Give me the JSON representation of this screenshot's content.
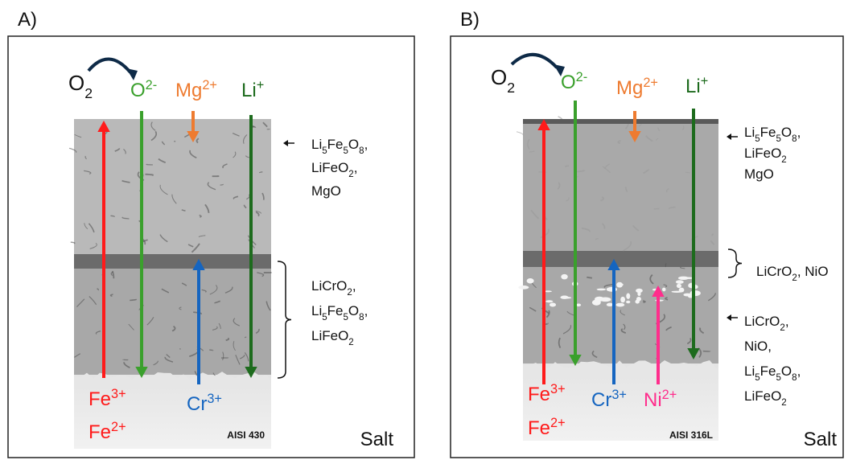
{
  "panels": [
    {
      "label": "A)",
      "sample": "AISI 430",
      "medium": "Salt",
      "reactant": [
        "O",
        {
          "sub": "2"
        }
      ],
      "ions": [
        {
          "text": [
            "O",
            {
              "sup": "2-"
            }
          ],
          "color": "#3aa02c"
        },
        {
          "text": [
            "Mg",
            {
              "sup": "2+"
            }
          ],
          "color": "#ee7b30"
        },
        {
          "text": [
            "Li",
            {
              "sup": "+"
            }
          ],
          "color": "#1d6b1d"
        },
        {
          "text": [
            "Fe",
            {
              "sup": "3+"
            }
          ],
          "color": "#ff1a1a"
        },
        {
          "text": [
            "Fe",
            {
              "sup": "2+"
            }
          ],
          "color": "#ff1a1a"
        },
        {
          "text": [
            "Cr",
            {
              "sup": "3+"
            }
          ],
          "color": "#1565c0"
        }
      ],
      "annotations": [
        {
          "lines": [
            [
              "Li",
              {
                "sub": "5"
              },
              "Fe",
              {
                "sub": "5"
              },
              "O",
              {
                "sub": "8"
              },
              ","
            ],
            [
              "LiFeO",
              {
                "sub": "2"
              },
              ","
            ],
            [
              "MgO"
            ]
          ]
        },
        {
          "lines": [
            [
              "LiCrO",
              {
                "sub": "2"
              },
              ","
            ],
            [
              "Li",
              {
                "sub": "5"
              },
              "Fe",
              {
                "sub": "5"
              },
              "O",
              {
                "sub": "8"
              },
              ","
            ],
            [
              "LiFeO",
              {
                "sub": "2"
              }
            ]
          ]
        }
      ]
    },
    {
      "label": "B)",
      "sample": "AISI 316L",
      "medium": "Salt",
      "reactant": [
        "O",
        {
          "sub": "2"
        }
      ],
      "ions": [
        {
          "text": [
            "O",
            {
              "sup": "2-"
            }
          ],
          "color": "#3aa02c"
        },
        {
          "text": [
            "Mg",
            {
              "sup": "2+"
            }
          ],
          "color": "#ee7b30"
        },
        {
          "text": [
            "Li",
            {
              "sup": "+"
            }
          ],
          "color": "#1d6b1d"
        },
        {
          "text": [
            "Fe",
            {
              "sup": "3+"
            }
          ],
          "color": "#ff1a1a"
        },
        {
          "text": [
            "Fe",
            {
              "sup": "2+"
            }
          ],
          "color": "#ff1a1a"
        },
        {
          "text": [
            "Cr",
            {
              "sup": "3+"
            }
          ],
          "color": "#1565c0"
        },
        {
          "text": [
            "Ni",
            {
              "sup": "2+"
            }
          ],
          "color": "#ff2d8c"
        }
      ],
      "annotations": [
        {
          "lines": [
            [
              "Li",
              {
                "sub": "5"
              },
              "Fe",
              {
                "sub": "5"
              },
              "O",
              {
                "sub": "8"
              },
              ","
            ],
            [
              "LiFeO",
              {
                "sub": "2"
              }
            ],
            [
              "MgO"
            ]
          ]
        },
        {
          "lines": [
            [
              "LiCrO",
              {
                "sub": "2"
              },
              ", NiO"
            ]
          ]
        },
        {
          "lines": [
            [
              "LiCrO",
              {
                "sub": "2"
              },
              ","
            ],
            [
              "NiO,"
            ],
            [
              "Li",
              {
                "sub": "5"
              },
              "Fe",
              {
                "sub": "5"
              },
              "O",
              {
                "sub": "8"
              },
              ","
            ],
            [
              "LiFeO",
              {
                "sub": "2"
              }
            ]
          ]
        }
      ]
    }
  ]
}
